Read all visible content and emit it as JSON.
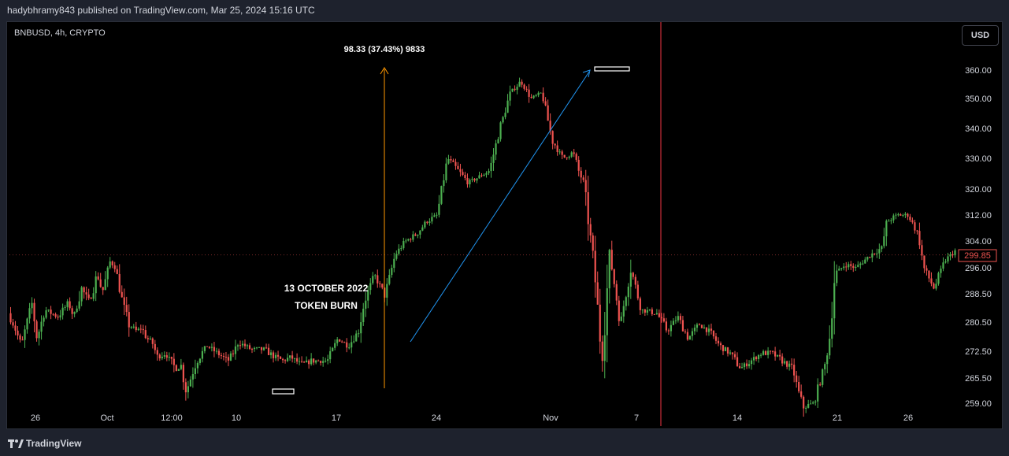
{
  "header": {
    "publisher_line": "hadybhramy843 published on TradingView.com, Mar 25, 2024 15:16 UTC"
  },
  "chart_header": {
    "symbol_line": "BNBUSD, 4h, CRYPTO",
    "currency_button": "USD"
  },
  "footer": {
    "brand": "TradingView"
  },
  "colors": {
    "up": "#26a69a",
    "up_candle": "#4caf50",
    "down_candle": "#ef5350",
    "measure_line": "#ff9800",
    "trend_line": "#2196f3",
    "vertical_line": "#f23645"
  },
  "chart_data": {
    "type": "candlestick",
    "symbol": "BNBUSD",
    "interval": "4h",
    "exchange": "CRYPTO",
    "y_axis": {
      "labels": [
        "360.00",
        "350.00",
        "340.00",
        "330.00",
        "320.00",
        "312.00",
        "304.00",
        "296.00",
        "288.50",
        "280.50",
        "272.50",
        "265.50",
        "259.00"
      ],
      "values": [
        360.0,
        350.0,
        340.0,
        330.0,
        320.0,
        312.0,
        304.0,
        296.0,
        288.5,
        280.5,
        272.5,
        265.5,
        259.0
      ]
    },
    "x_axis": {
      "labels": [
        "26",
        "Oct",
        "12:00",
        "10",
        "17",
        "24",
        "Nov",
        "7",
        "14",
        "21",
        "26"
      ]
    },
    "last_price": {
      "label": "299.85",
      "value": 299.85
    },
    "annotations": {
      "measure": {
        "text": "98.33 (37.43%) 9833"
      },
      "event": {
        "line1": "13 OCTOBER 2022",
        "line2": "TOKEN BURN"
      }
    },
    "series_path": [
      [
        0,
        283
      ],
      [
        0.03,
        278
      ],
      [
        0.05,
        274
      ],
      [
        0.09,
        286
      ],
      [
        0.11,
        276
      ],
      [
        0.14,
        284
      ],
      [
        0.19,
        282
      ],
      [
        0.23,
        286
      ],
      [
        0.25,
        282
      ],
      [
        0.28,
        290
      ],
      [
        0.31,
        286
      ],
      [
        0.34,
        294
      ],
      [
        0.36,
        289
      ],
      [
        0.39,
        298
      ],
      [
        0.41,
        296
      ],
      [
        0.44,
        285
      ],
      [
        0.46,
        280
      ],
      [
        0.49,
        278
      ],
      [
        0.51,
        279
      ],
      [
        0.53,
        276
      ],
      [
        0.55,
        275
      ],
      [
        0.57,
        271
      ],
      [
        0.6,
        272
      ],
      [
        0.62,
        270
      ],
      [
        0.64,
        268
      ],
      [
        0.66,
        269
      ],
      [
        0.68,
        262
      ],
      [
        0.72,
        270
      ],
      [
        0.76,
        274
      ],
      [
        0.8,
        272
      ],
      [
        0.84,
        270
      ],
      [
        0.86,
        272
      ],
      [
        0.88,
        275
      ],
      [
        0.93,
        273
      ],
      [
        0.98,
        273
      ],
      [
        1.02,
        271
      ],
      [
        1.05,
        270
      ],
      [
        1.08,
        271
      ],
      [
        1.12,
        269
      ],
      [
        1.16,
        270
      ],
      [
        1.22,
        270
      ],
      [
        1.26,
        276
      ],
      [
        1.3,
        274
      ],
      [
        1.34,
        278
      ],
      [
        1.36,
        286
      ],
      [
        1.4,
        294
      ],
      [
        1.44,
        288
      ],
      [
        1.48,
        300
      ],
      [
        1.52,
        304
      ],
      [
        1.56,
        306
      ],
      [
        1.6,
        310
      ],
      [
        1.64,
        312
      ],
      [
        1.68,
        330
      ],
      [
        1.72,
        326
      ],
      [
        1.76,
        322
      ],
      [
        1.8,
        324
      ],
      [
        1.84,
        326
      ],
      [
        1.88,
        340
      ],
      [
        1.92,
        352
      ],
      [
        1.96,
        356
      ],
      [
        2.0,
        350
      ],
      [
        2.04,
        352
      ],
      [
        2.08,
        336
      ],
      [
        2.12,
        330
      ],
      [
        2.16,
        332
      ],
      [
        2.18,
        326
      ],
      [
        2.2,
        322
      ],
      [
        2.24,
        296
      ],
      [
        2.27,
        270
      ],
      [
        2.3,
        300
      ],
      [
        2.34,
        280
      ],
      [
        2.38,
        296
      ],
      [
        2.42,
        284
      ],
      [
        2.48,
        283
      ],
      [
        2.52,
        278
      ],
      [
        2.56,
        282
      ],
      [
        2.6,
        276
      ],
      [
        2.64,
        280
      ],
      [
        2.68,
        278
      ],
      [
        2.72,
        274
      ],
      [
        2.76,
        272
      ],
      [
        2.8,
        268
      ],
      [
        2.84,
        270
      ],
      [
        2.88,
        272
      ],
      [
        2.92,
        272
      ],
      [
        2.96,
        270
      ],
      [
        3.0,
        268
      ],
      [
        3.02,
        262
      ],
      [
        3.04,
        258
      ],
      [
        3.08,
        259
      ],
      [
        3.12,
        268
      ],
      [
        3.14,
        276
      ],
      [
        3.16,
        294
      ],
      [
        3.2,
        297
      ],
      [
        3.24,
        296
      ],
      [
        3.3,
        300
      ],
      [
        3.34,
        302
      ],
      [
        3.36,
        310
      ],
      [
        3.4,
        312
      ],
      [
        3.44,
        312
      ],
      [
        3.48,
        306
      ],
      [
        3.5,
        296
      ],
      [
        3.54,
        290
      ],
      [
        3.58,
        298
      ],
      [
        3.62,
        301
      ]
    ]
  }
}
